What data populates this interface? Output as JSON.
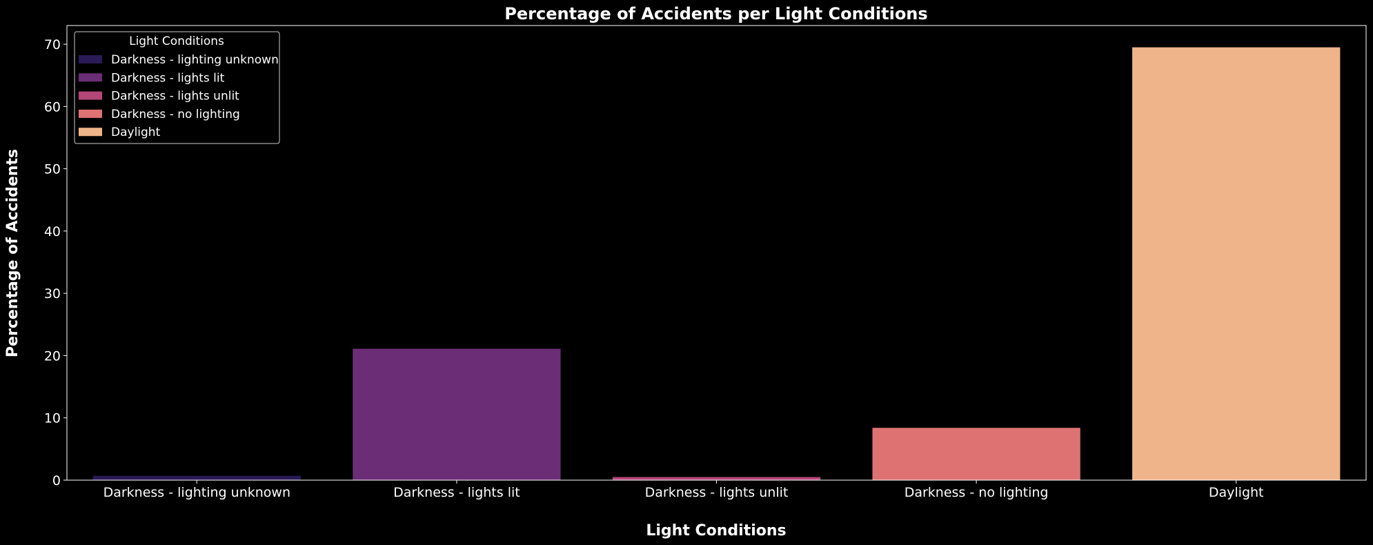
{
  "chart_data": {
    "type": "bar",
    "title": "Percentage of Accidents per Light Conditions",
    "xlabel": "Light Conditions",
    "ylabel": "Percentage of Accidents",
    "categories": [
      "Darkness - lighting unknown",
      "Darkness - lights lit",
      "Darkness - lights unlit",
      "Darkness - no lighting",
      "Daylight"
    ],
    "values": [
      0.7,
      21.1,
      0.5,
      8.4,
      69.5
    ],
    "colors": [
      "#2a1a55",
      "#6b2e76",
      "#b5467a",
      "#de7272",
      "#efb48a"
    ],
    "yticks": [
      0,
      10,
      20,
      30,
      40,
      50,
      60,
      70
    ],
    "ylim": [
      0,
      73
    ],
    "legend": {
      "title": "Light Conditions",
      "position": "top-left",
      "entries": [
        "Darkness - lighting unknown",
        "Darkness - lights lit",
        "Darkness - lights unlit",
        "Darkness - no lighting",
        "Daylight"
      ]
    },
    "grid": false,
    "background": "#000000",
    "foreground": "#ffffff"
  }
}
